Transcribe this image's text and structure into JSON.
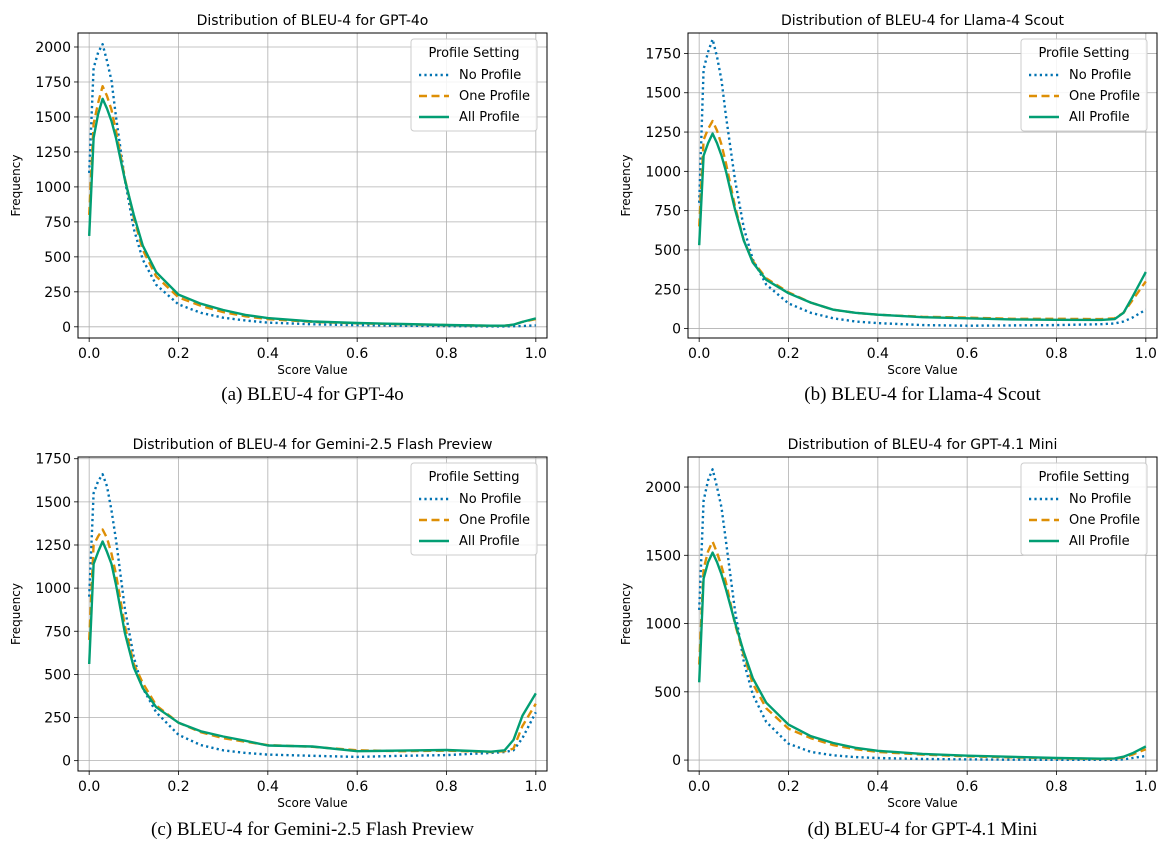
{
  "chart_data": [
    {
      "type": "line",
      "title": "Distribution of BLEU-4 for GPT-4o",
      "caption": "(a) BLEU-4 for GPT-4o",
      "xlabel": "Score Value",
      "ylabel": "Frequency",
      "xlim": [
        0,
        1
      ],
      "ylim": [
        -80,
        2100
      ],
      "grid": true,
      "legend_title": "Profile Setting",
      "legend_position": "top-right",
      "x": [
        0,
        0.01,
        0.02,
        0.03,
        0.04,
        0.05,
        0.06,
        0.08,
        0.1,
        0.12,
        0.15,
        0.2,
        0.25,
        0.3,
        0.35,
        0.4,
        0.5,
        0.6,
        0.7,
        0.8,
        0.9,
        0.93,
        0.95,
        0.97,
        1.0
      ],
      "series": [
        {
          "name": "No Profile",
          "color": "#0173b2",
          "dash": "dotted",
          "values": [
            1100,
            1850,
            1960,
            2020,
            1900,
            1760,
            1500,
            1050,
            700,
            480,
            300,
            160,
            100,
            65,
            45,
            30,
            18,
            12,
            8,
            5,
            3,
            3,
            4,
            6,
            10
          ]
        },
        {
          "name": "One Profile",
          "color": "#de8f05",
          "dash": "dashed",
          "values": [
            800,
            1450,
            1600,
            1720,
            1650,
            1550,
            1400,
            1060,
            780,
            550,
            360,
            210,
            150,
            105,
            75,
            55,
            35,
            25,
            18,
            12,
            8,
            8,
            15,
            35,
            55
          ]
        },
        {
          "name": "All Profile",
          "color": "#029e73",
          "dash": "solid",
          "values": [
            650,
            1350,
            1520,
            1630,
            1560,
            1470,
            1350,
            1050,
            800,
            580,
            390,
            230,
            165,
            120,
            85,
            62,
            38,
            27,
            20,
            13,
            8,
            8,
            16,
            35,
            60
          ]
        }
      ]
    },
    {
      "type": "line",
      "title": "Distribution of BLEU-4 for Llama-4 Scout",
      "caption": "(b) BLEU-4 for Llama-4 Scout",
      "xlabel": "Score Value",
      "ylabel": "Frequency",
      "xlim": [
        0,
        1
      ],
      "ylim": [
        -60,
        1880
      ],
      "grid": true,
      "legend_title": "Profile Setting",
      "legend_position": "top-right",
      "x": [
        0,
        0.01,
        0.02,
        0.03,
        0.04,
        0.05,
        0.06,
        0.08,
        0.1,
        0.12,
        0.15,
        0.2,
        0.25,
        0.3,
        0.35,
        0.4,
        0.5,
        0.6,
        0.7,
        0.8,
        0.9,
        0.93,
        0.95,
        0.97,
        1.0
      ],
      "series": [
        {
          "name": "No Profile",
          "color": "#0173b2",
          "dash": "dotted",
          "values": [
            800,
            1650,
            1760,
            1840,
            1730,
            1580,
            1350,
            950,
            640,
            440,
            280,
            160,
            100,
            65,
            45,
            35,
            22,
            18,
            20,
            22,
            28,
            32,
            45,
            70,
            120
          ]
        },
        {
          "name": "One Profile",
          "color": "#de8f05",
          "dash": "dashed",
          "values": [
            650,
            1200,
            1270,
            1320,
            1260,
            1170,
            1050,
            780,
            560,
            430,
            320,
            230,
            165,
            120,
            100,
            88,
            75,
            70,
            62,
            62,
            60,
            65,
            100,
            180,
            300
          ]
        },
        {
          "name": "All Profile",
          "color": "#029e73",
          "dash": "solid",
          "values": [
            530,
            1100,
            1180,
            1240,
            1180,
            1100,
            1000,
            760,
            560,
            420,
            310,
            225,
            165,
            120,
            100,
            88,
            72,
            65,
            58,
            56,
            55,
            60,
            100,
            200,
            360
          ]
        }
      ]
    },
    {
      "type": "line",
      "title": "Distribution of BLEU-4 for Gemini-2.5 Flash Preview",
      "caption": "(c) BLEU-4 for Gemini-2.5 Flash Preview",
      "xlabel": "Score Value",
      "ylabel": "Frequency",
      "xlim": [
        0,
        1
      ],
      "ylim": [
        -60,
        1760
      ],
      "grid": true,
      "legend_title": "Profile Setting",
      "legend_position": "top-right",
      "x": [
        0,
        0.01,
        0.02,
        0.03,
        0.04,
        0.05,
        0.06,
        0.08,
        0.1,
        0.12,
        0.15,
        0.2,
        0.25,
        0.3,
        0.35,
        0.4,
        0.5,
        0.6,
        0.7,
        0.8,
        0.9,
        0.93,
        0.95,
        0.97,
        1.0
      ],
      "series": [
        {
          "name": "No Profile",
          "color": "#0173b2",
          "dash": "dotted",
          "values": [
            950,
            1550,
            1620,
            1660,
            1590,
            1450,
            1280,
            880,
            600,
            420,
            280,
            150,
            90,
            60,
            45,
            35,
            28,
            22,
            28,
            32,
            45,
            50,
            60,
            130,
            280
          ]
        },
        {
          "name": "One Profile",
          "color": "#de8f05",
          "dash": "dashed",
          "values": [
            700,
            1250,
            1300,
            1340,
            1290,
            1200,
            1080,
            780,
            560,
            450,
            320,
            220,
            165,
            130,
            110,
            90,
            80,
            60,
            55,
            58,
            50,
            55,
            70,
            200,
            330
          ]
        },
        {
          "name": "All Profile",
          "color": "#029e73",
          "dash": "solid",
          "values": [
            560,
            1140,
            1210,
            1270,
            1210,
            1140,
            1020,
            740,
            540,
            420,
            310,
            220,
            170,
            140,
            115,
            88,
            82,
            55,
            58,
            62,
            52,
            60,
            120,
            260,
            390
          ]
        }
      ]
    },
    {
      "type": "line",
      "title": "Distribution of BLEU-4 for GPT-4.1 Mini",
      "caption": "(d) BLEU-4 for GPT-4.1 Mini",
      "xlabel": "Score Value",
      "ylabel": "Frequency",
      "xlim": [
        0,
        1
      ],
      "ylim": [
        -80,
        2220
      ],
      "grid": true,
      "legend_title": "Profile Setting",
      "legend_position": "top-right",
      "x": [
        0,
        0.01,
        0.02,
        0.03,
        0.04,
        0.05,
        0.06,
        0.08,
        0.1,
        0.12,
        0.15,
        0.2,
        0.25,
        0.3,
        0.35,
        0.4,
        0.5,
        0.6,
        0.7,
        0.8,
        0.9,
        0.93,
        0.95,
        0.97,
        1.0
      ],
      "series": [
        {
          "name": "No Profile",
          "color": "#0173b2",
          "dash": "dotted",
          "values": [
            1100,
            1900,
            2050,
            2130,
            2000,
            1850,
            1600,
            1100,
            720,
            480,
            280,
            120,
            60,
            35,
            22,
            15,
            8,
            5,
            3,
            2,
            2,
            2,
            5,
            15,
            30
          ]
        },
        {
          "name": "One Profile",
          "color": "#de8f05",
          "dash": "dashed",
          "values": [
            700,
            1400,
            1530,
            1600,
            1520,
            1420,
            1300,
            1000,
            770,
            560,
            380,
            230,
            160,
            110,
            80,
            60,
            40,
            28,
            20,
            14,
            8,
            10,
            20,
            40,
            80
          ]
        },
        {
          "name": "All Profile",
          "color": "#029e73",
          "dash": "solid",
          "values": [
            570,
            1330,
            1450,
            1520,
            1450,
            1360,
            1250,
            1010,
            790,
            600,
            420,
            260,
            175,
            125,
            90,
            68,
            45,
            32,
            24,
            16,
            10,
            12,
            25,
            50,
            100
          ]
        }
      ]
    }
  ]
}
